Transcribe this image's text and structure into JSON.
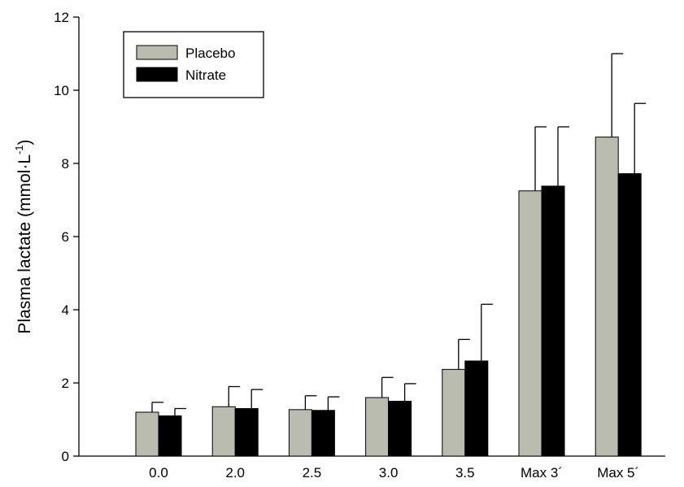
{
  "chart_data": {
    "type": "bar",
    "title": "",
    "xlabel": "",
    "ylabel": "Plasma lactate (mmol·L",
    "ylabel_sup": "-1",
    "ylabel_close": ")",
    "ylim": [
      0,
      12
    ],
    "yticks": [
      0,
      2,
      4,
      6,
      8,
      10,
      12
    ],
    "categories": [
      "0.0",
      "2.0",
      "2.5",
      "3.0",
      "3.5",
      "Max 3´",
      "Max 5´"
    ],
    "legend_position": "top-left",
    "grid": false,
    "series": [
      {
        "name": "Placebo",
        "color": "#bbbcb0",
        "values": [
          1.2,
          1.35,
          1.27,
          1.6,
          2.37,
          7.25,
          8.72
        ],
        "errors": [
          0.27,
          0.55,
          0.38,
          0.55,
          0.82,
          1.75,
          2.28
        ]
      },
      {
        "name": "Nitrate",
        "color": "#000000",
        "values": [
          1.1,
          1.3,
          1.25,
          1.5,
          2.6,
          7.38,
          7.72
        ],
        "errors": [
          0.2,
          0.52,
          0.37,
          0.48,
          1.55,
          1.62,
          1.92
        ]
      }
    ]
  }
}
